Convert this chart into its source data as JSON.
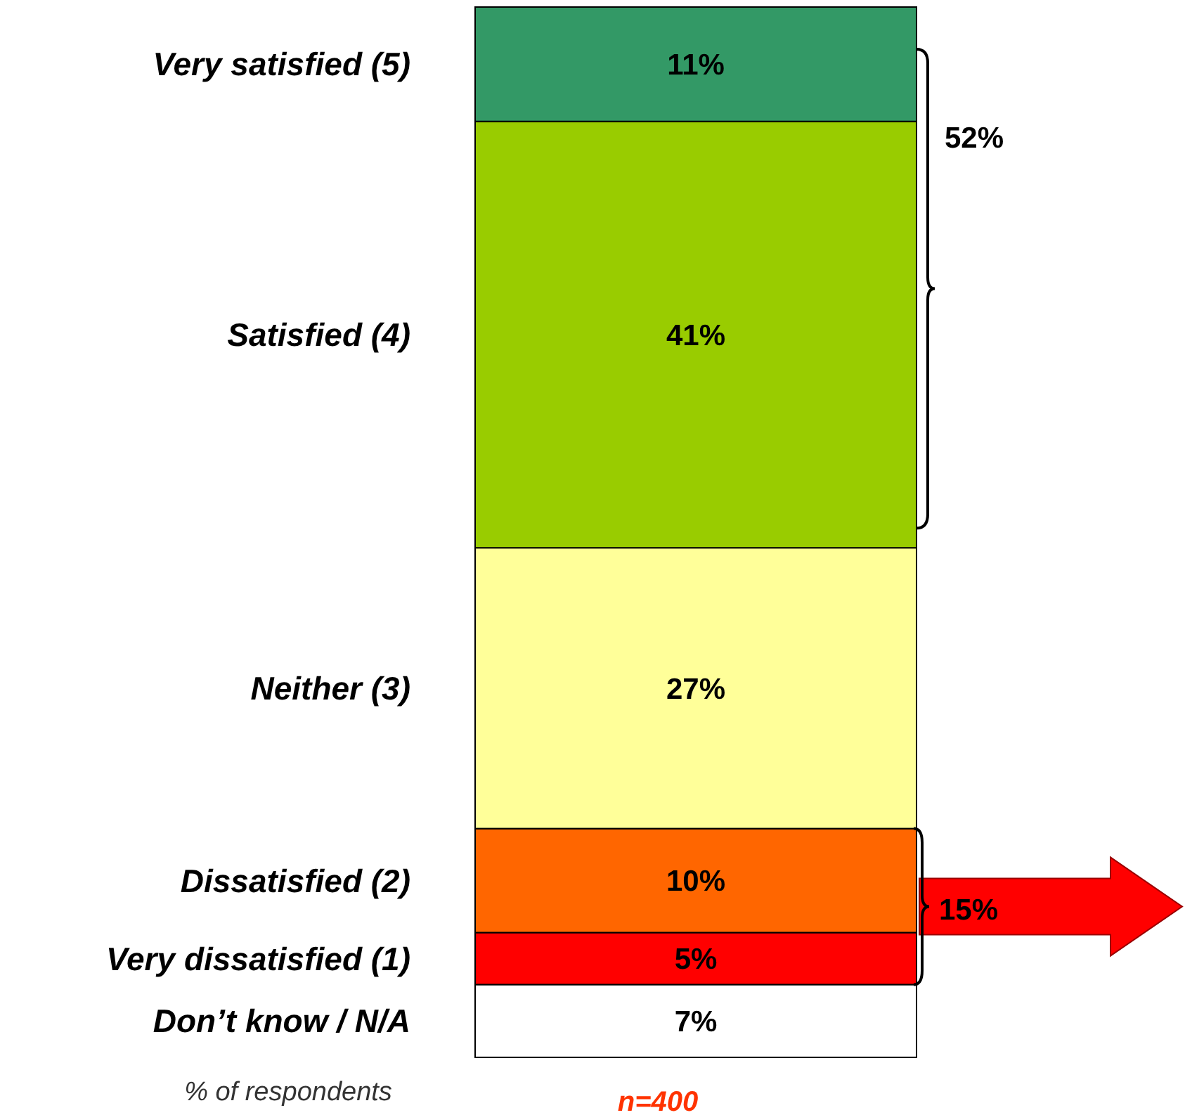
{
  "chart_data": {
    "type": "bar",
    "stacked": true,
    "categories": [
      null
    ],
    "series": [
      {
        "name": "Don’t know / N/A",
        "color": "#ffffff",
        "values": [
          7
        ],
        "value_labels": [
          "7%"
        ]
      },
      {
        "name": "Very dissatisfied (1)",
        "color": "#ff0000",
        "values": [
          5
        ],
        "value_labels": [
          "5%"
        ]
      },
      {
        "name": "Dissatisfied (2)",
        "color": "#ff6600",
        "values": [
          10
        ],
        "value_labels": [
          "10%"
        ]
      },
      {
        "name": "Neither (3)",
        "color": "#ffff99",
        "values": [
          27
        ],
        "value_labels": [
          "27%"
        ]
      },
      {
        "name": "Satisfied (4)",
        "color": "#99cc00",
        "values": [
          41
        ],
        "value_labels": [
          "41%"
        ]
      },
      {
        "name": "Very satisfied (5)",
        "color": "#339966",
        "values": [
          11
        ],
        "value_labels": [
          "11%"
        ]
      }
    ],
    "annotations": [
      "52%",
      "15%",
      "% of respondents",
      "n=400"
    ]
  }
}
